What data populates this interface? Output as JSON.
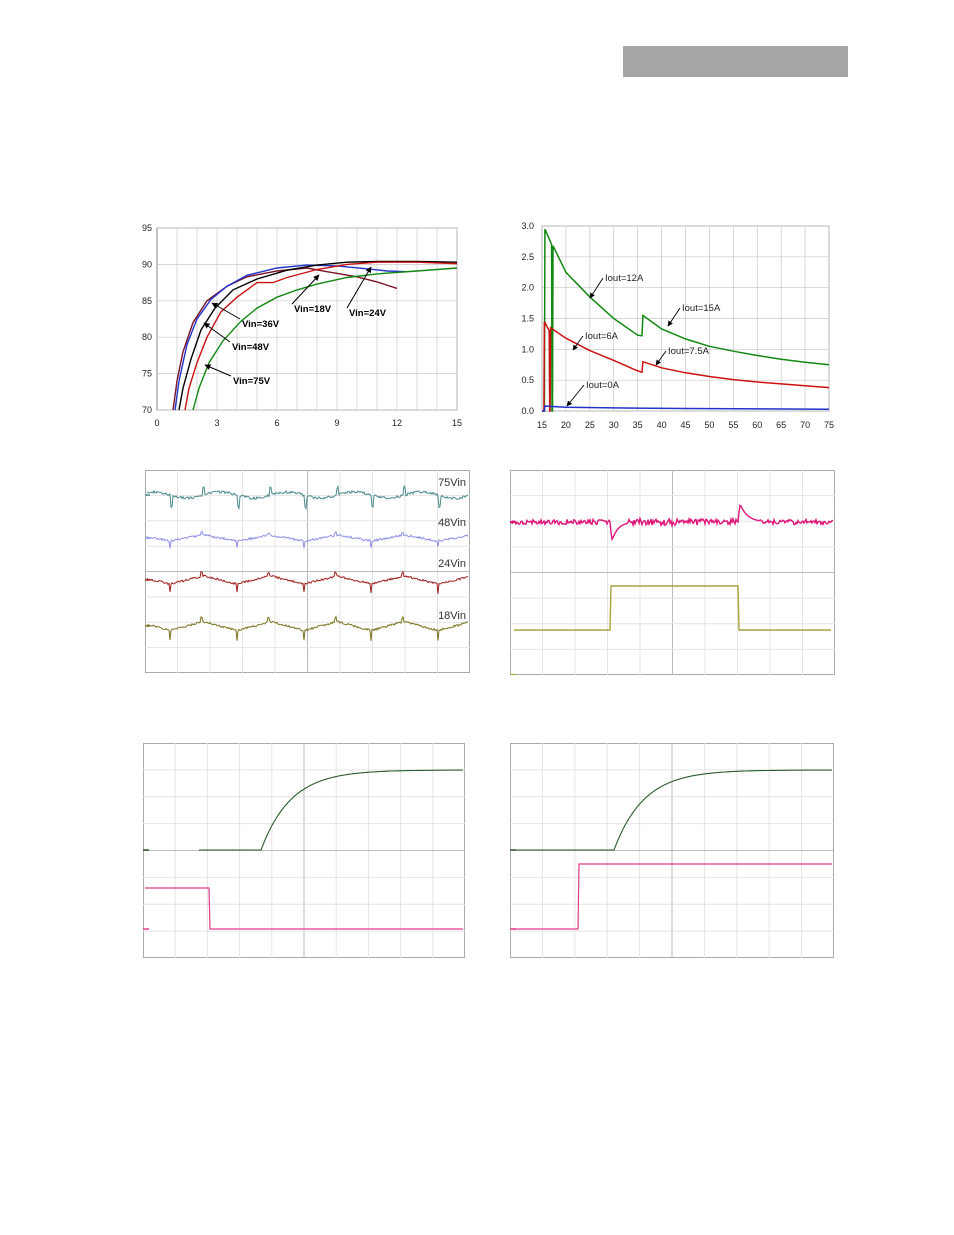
{
  "colors": {
    "header_bar": "#a6a6a6",
    "black": "#000000",
    "blue": "#2233cc",
    "red": "#cc1111",
    "green": "#118811",
    "maroon": "#7a1428",
    "teal": "#4a8a8a",
    "lavender": "#8f8fe8",
    "darkred": "#a01e1e",
    "olive": "#7a7420",
    "magenta": "#e0147a",
    "khaki": "#aaa33a",
    "darkgreen": "#2b5a2b",
    "pink": "#e23c8a"
  },
  "chart_data": [
    {
      "type": "line",
      "xlim": [
        0,
        15
      ],
      "ylim": [
        70,
        95
      ],
      "xticks": [
        "0",
        "3",
        "6",
        "9",
        "12",
        "15"
      ],
      "yticks": [
        "70",
        "75",
        "80",
        "85",
        "90",
        "95"
      ],
      "grid": true,
      "series": [
        {
          "name": "Vin=18V",
          "color": "maroon",
          "points": [
            [
              0.8,
              70
            ],
            [
              1,
              74
            ],
            [
              1.3,
              78
            ],
            [
              1.8,
              82
            ],
            [
              2.5,
              85
            ],
            [
              3.5,
              87
            ],
            [
              4.5,
              88.3
            ],
            [
              6,
              89.1
            ],
            [
              7.5,
              89.5
            ],
            [
              8.5,
              89
            ],
            [
              10,
              88.3
            ],
            [
              11,
              87.6
            ],
            [
              12,
              86.7
            ]
          ]
        },
        {
          "name": "Vin=24V",
          "color": "blue",
          "points": [
            [
              0.9,
              70
            ],
            [
              1.1,
              74
            ],
            [
              1.5,
              79
            ],
            [
              2,
              82.5
            ],
            [
              2.7,
              85.2
            ],
            [
              3.5,
              87
            ],
            [
              4.5,
              88.5
            ],
            [
              6,
              89.5
            ],
            [
              7.5,
              89.9
            ],
            [
              9,
              89.8
            ],
            [
              10.5,
              89.4
            ],
            [
              11.5,
              89.1
            ],
            [
              12.5,
              89
            ]
          ]
        },
        {
          "name": "Vin=36V",
          "color": "black",
          "points": [
            [
              1.1,
              70
            ],
            [
              1.3,
              73
            ],
            [
              1.7,
              77
            ],
            [
              2.2,
              81
            ],
            [
              2.9,
              84
            ],
            [
              3.8,
              86.5
            ],
            [
              5,
              88
            ],
            [
              6.5,
              89.2
            ],
            [
              8,
              89.9
            ],
            [
              9.5,
              90.3
            ],
            [
              11,
              90.4
            ],
            [
              13,
              90.4
            ],
            [
              15,
              90.3
            ]
          ]
        },
        {
          "name": "Vin=48V",
          "color": "red",
          "points": [
            [
              1.4,
              70
            ],
            [
              1.6,
              73
            ],
            [
              2,
              76.5
            ],
            [
              2.5,
              80
            ],
            [
              3.2,
              83.5
            ],
            [
              4,
              85.5
            ],
            [
              4.5,
              86.5
            ],
            [
              5,
              87.5
            ],
            [
              5.8,
              87.5
            ],
            [
              6.5,
              88.2
            ],
            [
              8,
              89.3
            ],
            [
              9.5,
              90
            ],
            [
              11,
              90.3
            ],
            [
              13,
              90.3
            ],
            [
              15,
              90.1
            ]
          ]
        },
        {
          "name": "Vin=75V",
          "color": "green",
          "points": [
            [
              1.8,
              70
            ],
            [
              2.1,
              73
            ],
            [
              2.6,
              76.5
            ],
            [
              3.3,
              79.5
            ],
            [
              4.2,
              82.2
            ],
            [
              5,
              84
            ],
            [
              6,
              85.5
            ],
            [
              7,
              86.5
            ],
            [
              8,
              87.3
            ],
            [
              9.5,
              88.2
            ],
            [
              11,
              88.7
            ],
            [
              13,
              89.1
            ],
            [
              15,
              89.5
            ]
          ]
        }
      ],
      "annotations": [
        "Vin=18V",
        "Vin=24V",
        "Vin=36V",
        "Vin=48V",
        "Vin=75V"
      ]
    },
    {
      "type": "line",
      "xlim": [
        15,
        75
      ],
      "ylim": [
        0,
        3
      ],
      "xticks": [
        "15",
        "20",
        "25",
        "30",
        "35",
        "40",
        "45",
        "50",
        "55",
        "60",
        "65",
        "70",
        "75"
      ],
      "yticks": [
        "0.0",
        "0.5",
        "1.0",
        "1.5",
        "2.0",
        "2.5",
        "3.0"
      ],
      "grid": true,
      "series": [
        {
          "name": "Iout=12A / Iout=15A",
          "color": "green",
          "points": [
            [
              15,
              0
            ],
            [
              15.5,
              0
            ],
            [
              15.6,
              2.95
            ],
            [
              17,
              2.7
            ],
            [
              17.1,
              0
            ],
            [
              17.2,
              0
            ],
            [
              17.3,
              2.68
            ],
            [
              20,
              2.25
            ],
            [
              25,
              1.85
            ],
            [
              30,
              1.5
            ],
            [
              35,
              1.23
            ],
            [
              35.9,
              1.22
            ],
            [
              36.1,
              1.55
            ],
            [
              40,
              1.33
            ],
            [
              45,
              1.17
            ],
            [
              50,
              1.05
            ],
            [
              55,
              0.97
            ],
            [
              60,
              0.9
            ],
            [
              65,
              0.84
            ],
            [
              70,
              0.79
            ],
            [
              75,
              0.75
            ]
          ]
        },
        {
          "name": "Iout=6A / Iout=7.5A",
          "color": "red",
          "points": [
            [
              15,
              0
            ],
            [
              15.4,
              0
            ],
            [
              15.5,
              1.45
            ],
            [
              16.5,
              1.3
            ],
            [
              16.6,
              0
            ],
            [
              16.7,
              0
            ],
            [
              16.8,
              1.35
            ],
            [
              20,
              1.18
            ],
            [
              25,
              0.98
            ],
            [
              30,
              0.82
            ],
            [
              35,
              0.65
            ],
            [
              35.9,
              0.63
            ],
            [
              36.1,
              0.8
            ],
            [
              40,
              0.7
            ],
            [
              45,
              0.62
            ],
            [
              50,
              0.56
            ],
            [
              55,
              0.51
            ],
            [
              60,
              0.47
            ],
            [
              65,
              0.44
            ],
            [
              70,
              0.41
            ],
            [
              75,
              0.38
            ]
          ]
        },
        {
          "name": "Iout=0A",
          "color": "blue",
          "points": [
            [
              15,
              0
            ],
            [
              15.5,
              0
            ],
            [
              15.6,
              0.08
            ],
            [
              20,
              0.06
            ],
            [
              30,
              0.05
            ],
            [
              45,
              0.04
            ],
            [
              75,
              0.03
            ]
          ]
        }
      ],
      "annotations": [
        "Iout=12A",
        "Iout=15A",
        "Iout=6A",
        "Iout=7.5A",
        "Iout=0A"
      ]
    },
    {
      "type": "line",
      "grid": true,
      "series": [
        {
          "name": "75Vin",
          "color": "teal"
        },
        {
          "name": "48Vin",
          "color": "lavender"
        },
        {
          "name": "24Vin",
          "color": "darkred"
        },
        {
          "name": "18Vin",
          "color": "olive"
        }
      ]
    },
    {
      "type": "line",
      "grid": true,
      "series": [
        {
          "color": "magenta"
        },
        {
          "color": "khaki"
        }
      ]
    },
    {
      "type": "line",
      "grid": true,
      "series": [
        {
          "color": "darkgreen"
        },
        {
          "color": "pink"
        }
      ]
    },
    {
      "type": "line",
      "grid": true,
      "series": [
        {
          "color": "darkgreen"
        },
        {
          "color": "pink"
        }
      ]
    }
  ]
}
